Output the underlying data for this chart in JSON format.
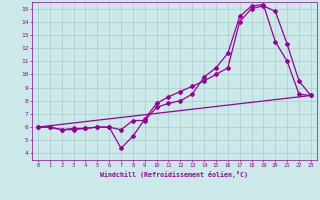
{
  "xlabel": "Windchill (Refroidissement éolien,°C)",
  "xlim": [
    -0.5,
    23.5
  ],
  "ylim": [
    3.5,
    15.5
  ],
  "xticks": [
    0,
    1,
    2,
    3,
    4,
    5,
    6,
    7,
    8,
    9,
    10,
    11,
    12,
    13,
    14,
    15,
    16,
    17,
    18,
    19,
    20,
    21,
    22,
    23
  ],
  "yticks": [
    4,
    5,
    6,
    7,
    8,
    9,
    10,
    11,
    12,
    13,
    14,
    15
  ],
  "bg_color": "#cce9e9",
  "grid_color": "#aacccc",
  "line_color": "#990099",
  "line1_x": [
    0,
    1,
    2,
    3,
    4,
    5,
    6,
    7,
    8,
    9,
    10,
    11,
    12,
    13,
    14,
    15,
    16,
    17,
    18,
    19,
    20,
    21,
    22,
    23
  ],
  "line1_y": [
    6.0,
    6.0,
    5.8,
    5.8,
    5.9,
    6.0,
    6.0,
    5.8,
    6.5,
    6.5,
    7.5,
    7.8,
    8.0,
    8.5,
    9.8,
    10.5,
    11.6,
    14.4,
    15.2,
    15.3,
    12.5,
    11.0,
    8.5,
    8.4
  ],
  "line2_x": [
    0,
    1,
    2,
    3,
    4,
    5,
    6,
    7,
    8,
    9,
    10,
    11,
    12,
    13,
    14,
    15,
    16,
    17,
    18,
    19,
    20,
    21,
    22,
    23
  ],
  "line2_y": [
    6.0,
    6.0,
    5.8,
    5.9,
    5.9,
    6.0,
    6.0,
    4.4,
    5.3,
    6.6,
    7.8,
    8.3,
    8.7,
    9.1,
    9.5,
    10.0,
    10.5,
    14.0,
    15.0,
    15.2,
    14.8,
    12.3,
    9.5,
    8.4
  ],
  "line3_x": [
    0,
    23
  ],
  "line3_y": [
    6.0,
    8.4
  ]
}
